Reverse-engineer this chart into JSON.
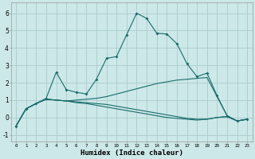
{
  "title": "",
  "xlabel": "Humidex (Indice chaleur)",
  "bg_color": "#cce8e8",
  "grid_color": "#aacccc",
  "line_color": "#1a6b6b",
  "xlim": [
    -0.5,
    23.5
  ],
  "ylim": [
    -1.4,
    6.6
  ],
  "xticks": [
    0,
    1,
    2,
    3,
    4,
    5,
    6,
    7,
    8,
    9,
    10,
    11,
    12,
    13,
    14,
    15,
    16,
    17,
    18,
    19,
    20,
    21,
    22,
    23
  ],
  "yticks": [
    -1,
    0,
    1,
    2,
    3,
    4,
    5,
    6
  ],
  "line1_x": [
    0,
    1,
    2,
    3,
    4,
    5,
    6,
    7,
    8,
    9,
    10,
    11,
    12,
    13,
    14,
    15,
    16,
    17,
    18,
    19,
    20,
    21,
    22,
    23
  ],
  "line1_y": [
    -0.5,
    0.5,
    0.8,
    1.1,
    2.6,
    1.6,
    1.45,
    1.35,
    2.2,
    3.4,
    3.5,
    4.75,
    6.0,
    5.7,
    4.85,
    4.8,
    4.25,
    3.1,
    2.35,
    2.55,
    1.25,
    0.1,
    -0.2,
    -0.1
  ],
  "line2_x": [
    0,
    1,
    2,
    3,
    4,
    5,
    6,
    7,
    8,
    9,
    10,
    11,
    12,
    13,
    14,
    15,
    16,
    17,
    18,
    19,
    20,
    21,
    22,
    23
  ],
  "line2_y": [
    -0.5,
    0.5,
    0.8,
    1.05,
    1.0,
    0.95,
    1.0,
    1.05,
    1.1,
    1.2,
    1.35,
    1.5,
    1.65,
    1.8,
    1.95,
    2.05,
    2.15,
    2.2,
    2.25,
    2.3,
    1.2,
    0.1,
    -0.2,
    -0.1
  ],
  "line3_x": [
    0,
    1,
    2,
    3,
    4,
    5,
    6,
    7,
    8,
    9,
    10,
    11,
    12,
    13,
    14,
    15,
    16,
    17,
    18,
    19,
    20,
    21,
    22,
    23
  ],
  "line3_y": [
    -0.5,
    0.5,
    0.8,
    1.05,
    1.0,
    0.95,
    0.9,
    0.85,
    0.8,
    0.75,
    0.65,
    0.55,
    0.45,
    0.35,
    0.25,
    0.15,
    0.05,
    -0.05,
    -0.1,
    -0.1,
    0.0,
    0.05,
    -0.2,
    -0.1
  ],
  "line4_x": [
    0,
    1,
    2,
    3,
    4,
    5,
    6,
    7,
    8,
    9,
    10,
    11,
    12,
    13,
    14,
    15,
    16,
    17,
    18,
    19,
    20,
    21,
    22,
    23
  ],
  "line4_y": [
    -0.5,
    0.5,
    0.8,
    1.05,
    1.0,
    0.95,
    0.85,
    0.8,
    0.7,
    0.6,
    0.5,
    0.4,
    0.3,
    0.2,
    0.1,
    0.0,
    -0.05,
    -0.1,
    -0.15,
    -0.1,
    0.0,
    0.05,
    -0.2,
    -0.1
  ],
  "markersize": 2.0
}
